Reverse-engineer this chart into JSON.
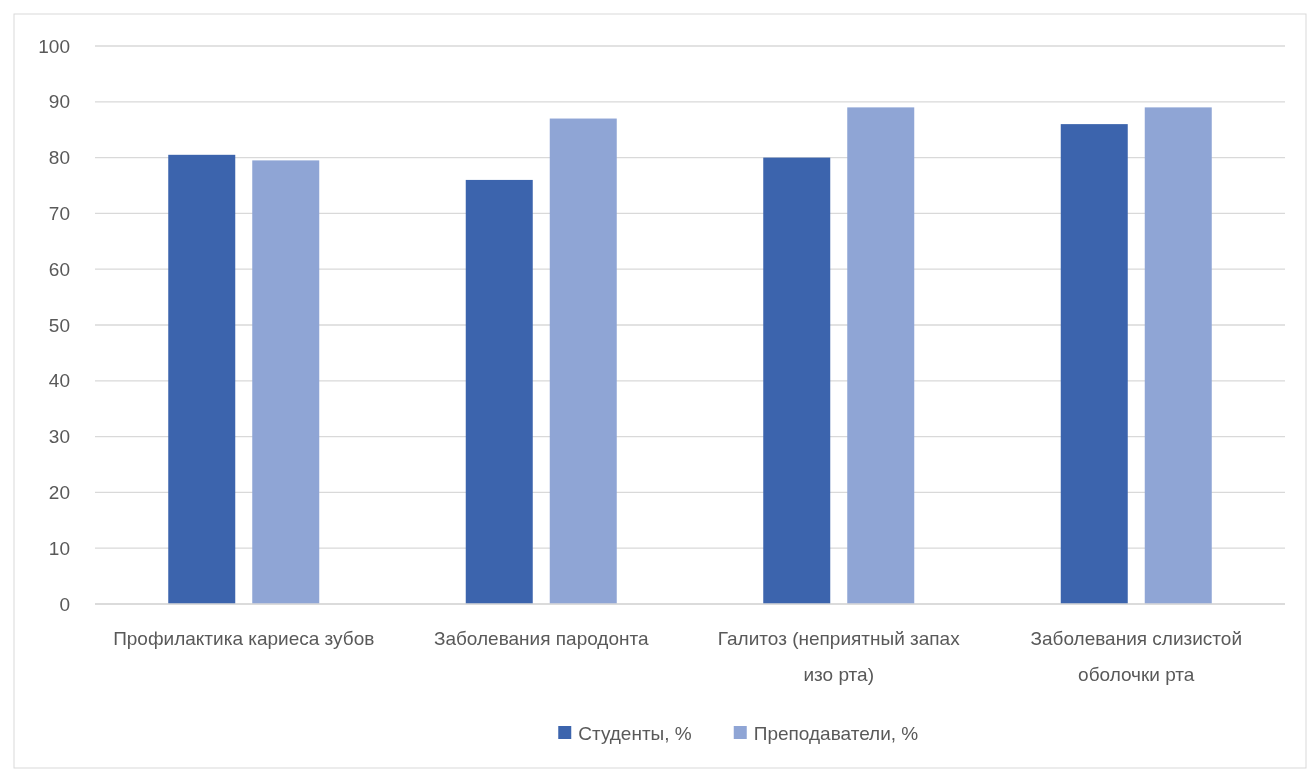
{
  "chart_data": {
    "type": "bar",
    "categories": [
      "Профилактика кариеса зубов",
      "Заболевания пародонта",
      "Галитоз (неприятный запах изо рта)",
      "Заболевания слизистой оболочки рта"
    ],
    "series": [
      {
        "name": "Студенты, %",
        "color": "#3c64ad",
        "values": [
          80.5,
          76,
          80,
          86
        ]
      },
      {
        "name": "Преподаватели, %",
        "color": "#8fa5d5",
        "values": [
          79.5,
          87,
          89,
          89
        ]
      }
    ],
    "ylim": [
      0,
      100
    ],
    "yticks": [
      0,
      10,
      20,
      30,
      40,
      50,
      60,
      70,
      80,
      90,
      100
    ],
    "grid": "y",
    "legend": "bottom"
  }
}
